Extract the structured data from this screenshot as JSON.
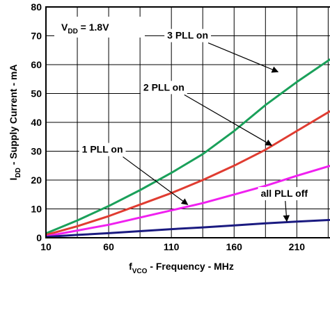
{
  "chart_data": {
    "type": "line",
    "xlabel": "f",
    "xlabel_sub": "VCO",
    "xlabel_rest": " - Frequency - MHz",
    "ylabel": "I",
    "ylabel_sub": "DD",
    "ylabel_rest": " - Supply Current - mA",
    "xlim": [
      10,
      237
    ],
    "ylim": [
      0,
      80
    ],
    "xticks": [
      10,
      60,
      110,
      160,
      210
    ],
    "yticks": [
      0,
      10,
      20,
      30,
      40,
      50,
      60,
      70,
      80
    ],
    "grid": true,
    "condition": {
      "main": "V",
      "sub": "DD",
      "rest": " = 1.8V"
    },
    "series": [
      {
        "name": "3 PLL on",
        "color": "#1aa05a",
        "x": [
          10,
          35,
          60,
          85,
          110,
          135,
          160,
          185,
          210,
          237
        ],
        "y": [
          1.5,
          6,
          11,
          16.5,
          22.5,
          29,
          37,
          46,
          54,
          62
        ]
      },
      {
        "name": "2 PLL on",
        "color": "#e03c31",
        "x": [
          10,
          35,
          60,
          85,
          110,
          135,
          160,
          185,
          210,
          237
        ],
        "y": [
          1,
          4,
          7.5,
          11.5,
          15.5,
          20,
          25,
          30.5,
          37,
          44
        ]
      },
      {
        "name": "1 PLL on",
        "color": "#f020f0",
        "x": [
          10,
          35,
          60,
          85,
          110,
          135,
          160,
          185,
          210,
          237
        ],
        "y": [
          0.5,
          2.5,
          4.5,
          7,
          9.5,
          12,
          15,
          18,
          21.5,
          25
        ]
      },
      {
        "name": "all PLL off",
        "color": "#1a1a80",
        "x": [
          10,
          35,
          60,
          85,
          110,
          135,
          160,
          185,
          210,
          237
        ],
        "y": [
          0.3,
          1,
          1.6,
          2.3,
          3,
          3.6,
          4.3,
          5,
          5.6,
          6.2
        ]
      }
    ],
    "annotations": [
      {
        "text": "3 PLL on",
        "series": 0,
        "label_x": 123,
        "label_y": 69,
        "arrow_x": 195,
        "arrow_y": 57.5
      },
      {
        "text": "2 PLL on",
        "series": 1,
        "label_x": 104,
        "label_y": 51,
        "arrow_x": 190,
        "arrow_y": 32
      },
      {
        "text": "1 PLL on",
        "series": 2,
        "label_x": 55,
        "label_y": 29.5,
        "arrow_x": 123,
        "arrow_y": 11.5
      },
      {
        "text": "all PLL off",
        "series": 3,
        "label_x": 200,
        "label_y": 14.2,
        "arrow_x": 202,
        "arrow_y": 5.7
      }
    ]
  }
}
